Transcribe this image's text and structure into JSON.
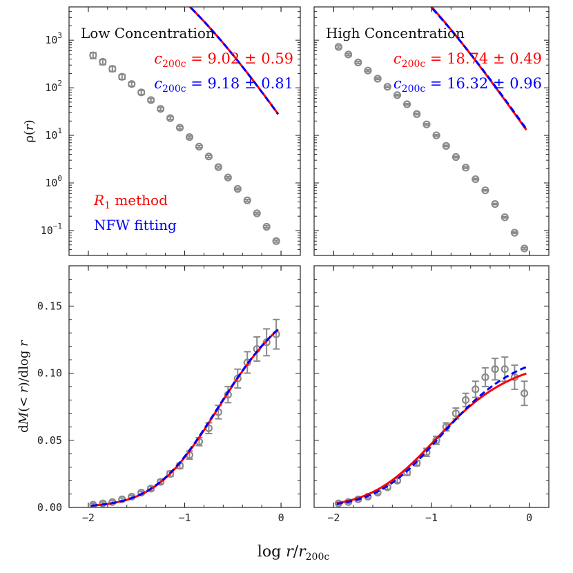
{
  "chart_data": [
    {
      "type": "scatter",
      "panel": "top-left",
      "title": "Low Concentration",
      "ylabel": "ρ(r)",
      "yscale": "log",
      "xlim": [
        -2.2,
        0.2
      ],
      "ylim": [
        0.03,
        5000
      ],
      "yticks": [
        {
          "v": 0.1,
          "base": "10",
          "exp": "−1"
        },
        {
          "v": 1,
          "base": "10",
          "exp": "0"
        },
        {
          "v": 10,
          "base": "10",
          "exp": "1"
        },
        {
          "v": 100,
          "base": "10",
          "exp": "2"
        },
        {
          "v": 1000,
          "base": "10",
          "exp": "3"
        }
      ],
      "model": {
        "type": "nfw_density",
        "c_r1": 9.02,
        "c_nfw": 9.18,
        "norm": 0.6
      },
      "annotations": [
        {
          "var": "c",
          "sub": "200c",
          "text": " = 9.02 ± 0.59",
          "color": "#ff0000"
        },
        {
          "var": "c",
          "sub": "200c",
          "text": " = 9.18 ± 0.81",
          "color": "#0000ff"
        }
      ],
      "legend": {
        "placement": "bottom-left",
        "entries": [
          {
            "var": "R",
            "sub": "1",
            "label": " method",
            "color": "#ff0000"
          },
          {
            "var": "",
            "sub": "",
            "label": "NFW fitting",
            "color": "#0000ff"
          }
        ]
      },
      "points": [
        {
          "x": -1.95,
          "y": 480,
          "err": 70
        },
        {
          "x": -1.85,
          "y": 350,
          "err": 45
        },
        {
          "x": -1.75,
          "y": 250,
          "err": 30
        },
        {
          "x": -1.65,
          "y": 170,
          "err": 20
        },
        {
          "x": -1.55,
          "y": 120,
          "err": 12
        },
        {
          "x": -1.45,
          "y": 80,
          "err": 8
        },
        {
          "x": -1.35,
          "y": 55,
          "err": 4
        },
        {
          "x": -1.25,
          "y": 36,
          "err": 2.5
        },
        {
          "x": -1.15,
          "y": 23,
          "err": 1.5
        },
        {
          "x": -1.05,
          "y": 14.5,
          "err": 0.9
        },
        {
          "x": -0.95,
          "y": 9.2,
          "err": 0.5
        },
        {
          "x": -0.85,
          "y": 5.8,
          "err": 0.3
        },
        {
          "x": -0.75,
          "y": 3.6,
          "err": 0.2
        },
        {
          "x": -0.65,
          "y": 2.15,
          "err": 0.1
        },
        {
          "x": -0.55,
          "y": 1.3,
          "err": 0.06
        },
        {
          "x": -0.45,
          "y": 0.75,
          "err": 0.03
        },
        {
          "x": -0.35,
          "y": 0.43,
          "err": 0.02
        },
        {
          "x": -0.25,
          "y": 0.23,
          "err": 0.01
        },
        {
          "x": -0.15,
          "y": 0.12,
          "err": 0.006
        },
        {
          "x": -0.05,
          "y": 0.06,
          "err": 0.003
        }
      ]
    },
    {
      "type": "scatter",
      "panel": "top-right",
      "title": "High Concentration",
      "ylabel": "",
      "yscale": "log",
      "xlim": [
        -2.2,
        0.2
      ],
      "ylim": [
        0.03,
        5000
      ],
      "model": {
        "type": "nfw_density",
        "c_r1": 18.74,
        "c_nfw": 16.32,
        "norm": 0.36
      },
      "annotations": [
        {
          "var": "c",
          "sub": "200c",
          "text": " = 18.74 ± 0.49",
          "color": "#ff0000"
        },
        {
          "var": "c",
          "sub": "200c",
          "text": " = 16.32 ± 0.96",
          "color": "#0000ff"
        }
      ],
      "points": [
        {
          "x": -1.95,
          "y": 720,
          "err": 40
        },
        {
          "x": -1.85,
          "y": 500,
          "err": 25
        },
        {
          "x": -1.75,
          "y": 340,
          "err": 15
        },
        {
          "x": -1.65,
          "y": 230,
          "err": 10
        },
        {
          "x": -1.55,
          "y": 155,
          "err": 6
        },
        {
          "x": -1.45,
          "y": 105,
          "err": 4
        },
        {
          "x": -1.35,
          "y": 70,
          "err": 2.5
        },
        {
          "x": -1.25,
          "y": 45,
          "err": 1.5
        },
        {
          "x": -1.15,
          "y": 28,
          "err": 1
        },
        {
          "x": -1.05,
          "y": 17,
          "err": 0.6
        },
        {
          "x": -0.95,
          "y": 10,
          "err": 0.35
        },
        {
          "x": -0.85,
          "y": 6,
          "err": 0.2
        },
        {
          "x": -0.75,
          "y": 3.5,
          "err": 0.12
        },
        {
          "x": -0.65,
          "y": 2.1,
          "err": 0.07
        },
        {
          "x": -0.55,
          "y": 1.2,
          "err": 0.04
        },
        {
          "x": -0.45,
          "y": 0.7,
          "err": 0.02
        },
        {
          "x": -0.35,
          "y": 0.36,
          "err": 0.01
        },
        {
          "x": -0.25,
          "y": 0.19,
          "err": 0.006
        },
        {
          "x": -0.15,
          "y": 0.09,
          "err": 0.003
        },
        {
          "x": -0.05,
          "y": 0.042,
          "err": 0.002
        }
      ]
    },
    {
      "type": "scatter",
      "panel": "bottom-left",
      "title": "",
      "ylabel": "dM(< r)/dlog r",
      "yscale": "linear",
      "xlim": [
        -2.2,
        0.2
      ],
      "ylim": [
        0.0,
        0.18
      ],
      "yticks": [
        {
          "v": 0.0,
          "label": "0.00"
        },
        {
          "v": 0.05,
          "label": "0.05"
        },
        {
          "v": 0.1,
          "label": "0.10"
        },
        {
          "v": 0.15,
          "label": "0.15"
        }
      ],
      "xticks": [
        {
          "v": -2,
          "label": "−2"
        },
        {
          "v": -1,
          "label": "−1"
        },
        {
          "v": 0,
          "label": "0"
        }
      ],
      "model": {
        "type": "nfw_mass",
        "c_r1": 9.02,
        "c_nfw": 9.18,
        "norm": 0.1345
      },
      "points": [
        {
          "x": -1.95,
          "y": 0.002,
          "err": 0.001
        },
        {
          "x": -1.85,
          "y": 0.003,
          "err": 0.001
        },
        {
          "x": -1.75,
          "y": 0.004,
          "err": 0.001
        },
        {
          "x": -1.65,
          "y": 0.006,
          "err": 0.001
        },
        {
          "x": -1.55,
          "y": 0.008,
          "err": 0.001
        },
        {
          "x": -1.45,
          "y": 0.011,
          "err": 0.001
        },
        {
          "x": -1.35,
          "y": 0.014,
          "err": 0.0015
        },
        {
          "x": -1.25,
          "y": 0.019,
          "err": 0.0015
        },
        {
          "x": -1.15,
          "y": 0.025,
          "err": 0.002
        },
        {
          "x": -1.05,
          "y": 0.031,
          "err": 0.002
        },
        {
          "x": -0.95,
          "y": 0.039,
          "err": 0.003
        },
        {
          "x": -0.85,
          "y": 0.049,
          "err": 0.003
        },
        {
          "x": -0.75,
          "y": 0.059,
          "err": 0.004
        },
        {
          "x": -0.65,
          "y": 0.071,
          "err": 0.005
        },
        {
          "x": -0.55,
          "y": 0.084,
          "err": 0.006
        },
        {
          "x": -0.45,
          "y": 0.096,
          "err": 0.007
        },
        {
          "x": -0.35,
          "y": 0.108,
          "err": 0.008
        },
        {
          "x": -0.25,
          "y": 0.118,
          "err": 0.009
        },
        {
          "x": -0.15,
          "y": 0.123,
          "err": 0.01
        },
        {
          "x": -0.05,
          "y": 0.129,
          "err": 0.011
        }
      ]
    },
    {
      "type": "scatter",
      "panel": "bottom-right",
      "title": "",
      "ylabel": "",
      "yscale": "linear",
      "xlim": [
        -2.2,
        0.2
      ],
      "ylim": [
        0.0,
        0.18
      ],
      "xticks": [
        {
          "v": -2,
          "label": "−2"
        },
        {
          "v": -1,
          "label": "−1"
        },
        {
          "v": 0,
          "label": "0"
        }
      ],
      "model": {
        "type": "nfw_mass",
        "c_r1": 18.74,
        "c_nfw": 16.32,
        "norm_r1": 0.1005,
        "norm_nfw": 0.1055
      },
      "points": [
        {
          "x": -1.95,
          "y": 0.003,
          "err": 0.001
        },
        {
          "x": -1.85,
          "y": 0.004,
          "err": 0.001
        },
        {
          "x": -1.75,
          "y": 0.006,
          "err": 0.001
        },
        {
          "x": -1.65,
          "y": 0.008,
          "err": 0.001
        },
        {
          "x": -1.55,
          "y": 0.011,
          "err": 0.001
        },
        {
          "x": -1.45,
          "y": 0.015,
          "err": 0.0015
        },
        {
          "x": -1.35,
          "y": 0.02,
          "err": 0.0015
        },
        {
          "x": -1.25,
          "y": 0.026,
          "err": 0.002
        },
        {
          "x": -1.15,
          "y": 0.033,
          "err": 0.002
        },
        {
          "x": -1.05,
          "y": 0.041,
          "err": 0.003
        },
        {
          "x": -0.95,
          "y": 0.05,
          "err": 0.003
        },
        {
          "x": -0.85,
          "y": 0.06,
          "err": 0.003
        },
        {
          "x": -0.75,
          "y": 0.07,
          "err": 0.004
        },
        {
          "x": -0.65,
          "y": 0.08,
          "err": 0.005
        },
        {
          "x": -0.55,
          "y": 0.088,
          "err": 0.006
        },
        {
          "x": -0.45,
          "y": 0.097,
          "err": 0.007
        },
        {
          "x": -0.35,
          "y": 0.103,
          "err": 0.008
        },
        {
          "x": -0.25,
          "y": 0.103,
          "err": 0.009
        },
        {
          "x": -0.15,
          "y": 0.097,
          "err": 0.009
        },
        {
          "x": -0.05,
          "y": 0.085,
          "err": 0.009
        }
      ]
    }
  ],
  "shared_xlabel": {
    "prefix": "log ",
    "var": "r",
    "slash": "/",
    "var2": "r",
    "sub": "200c"
  },
  "colors": {
    "r1": "#ff0000",
    "nfw": "#0000ff",
    "points": "#8a8a8a"
  }
}
